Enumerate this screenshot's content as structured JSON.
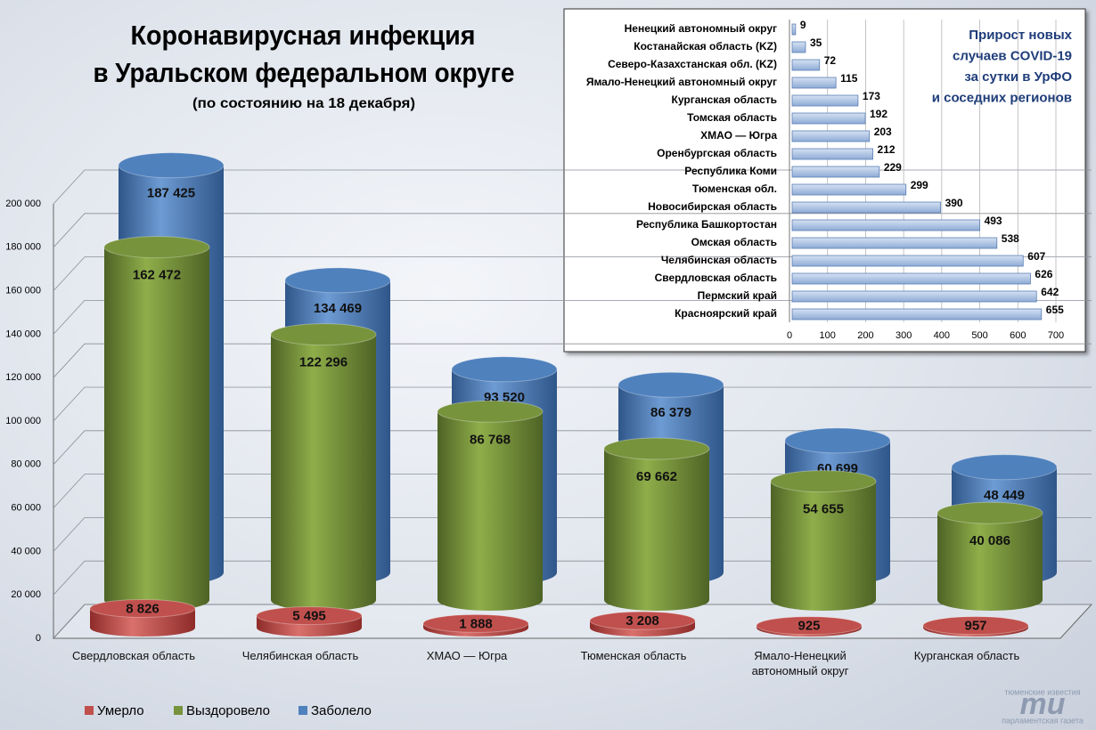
{
  "chart_data": [
    {
      "type": "bar",
      "title": [
        "Коронавирусная инфекция",
        "в Уральском федеральном округе"
      ],
      "subtitle": "(по состоянию на 18 декабря)",
      "categories": [
        "Свердловская область",
        "Челябинская область",
        "ХМАО — Югра",
        "Тюменская область",
        "Ямало-Ненецкий автономный округ",
        "Курганская область"
      ],
      "series": [
        {
          "name": "Умерло",
          "color": "#c0504d",
          "values": [
            8826,
            5495,
            1888,
            3208,
            925,
            957
          ],
          "value_labels": [
            "8 826",
            "5 495",
            "1 888",
            "3 208",
            "925",
            "957"
          ]
        },
        {
          "name": "Выздоровело",
          "color": "#77933c",
          "values": [
            162472,
            122296,
            86768,
            69662,
            54655,
            40086
          ],
          "value_labels": [
            "162 472",
            "122 296",
            "86 768",
            "69 662",
            "54 655",
            "40 086"
          ]
        },
        {
          "name": "Заболело",
          "color": "#4f81bd",
          "values": [
            187425,
            134469,
            93520,
            86379,
            60699,
            48449
          ],
          "value_labels": [
            "187 425",
            "134 469",
            "93 520",
            "86 379",
            "60 699",
            "48 449"
          ]
        }
      ],
      "ylim": [
        0,
        200000
      ],
      "yticks": [
        0,
        {
          "value": 20000,
          "label": "20 000"
        },
        {
          "value": 40000,
          "label": "40 000"
        },
        {
          "value": 60000,
          "label": "60 000"
        },
        {
          "value": 80000,
          "label": "80 000"
        },
        {
          "value": 100000,
          "label": "100 000"
        },
        {
          "value": 120000,
          "label": "120 000"
        },
        {
          "value": 140000,
          "label": "140 000"
        },
        {
          "value": 160000,
          "label": "160 000"
        },
        {
          "value": 180000,
          "label": "180 000"
        },
        {
          "value": 200000,
          "label": "200 000"
        }
      ],
      "grid": true,
      "legend": "bottom"
    },
    {
      "type": "barh",
      "title": [
        "Прирост новых",
        "случаев COVID-19",
        "за сутки в УрФО",
        "и соседних регионов"
      ],
      "categories": [
        "Ненецкий автономный округ",
        "Костанайская область (KZ)",
        "Северо-Казахстанская обл. (KZ)",
        "Ямало-Ненецкий автономный округ",
        "Курганская область",
        "Томская область",
        "ХМАО — Югра",
        "Оренбургская область",
        "Республика Коми",
        "Тюменская обл.",
        "Новосибирская область",
        "Республика Башкортостан",
        "Омская область",
        "Челябинская область",
        "Свердловская область",
        "Пермский край",
        "Красноярский край"
      ],
      "values": [
        9,
        35,
        72,
        115,
        173,
        192,
        203,
        212,
        229,
        299,
        390,
        493,
        538,
        607,
        626,
        642,
        655
      ],
      "color": "#a9c1e3",
      "xlim": [
        0,
        700
      ],
      "xticks": [
        0,
        100,
        200,
        300,
        400,
        500,
        600,
        700
      ],
      "grid": true
    }
  ],
  "logo": {
    "top": "тюменские известия",
    "mark": "ти",
    "bottom": "парламентская газета"
  }
}
